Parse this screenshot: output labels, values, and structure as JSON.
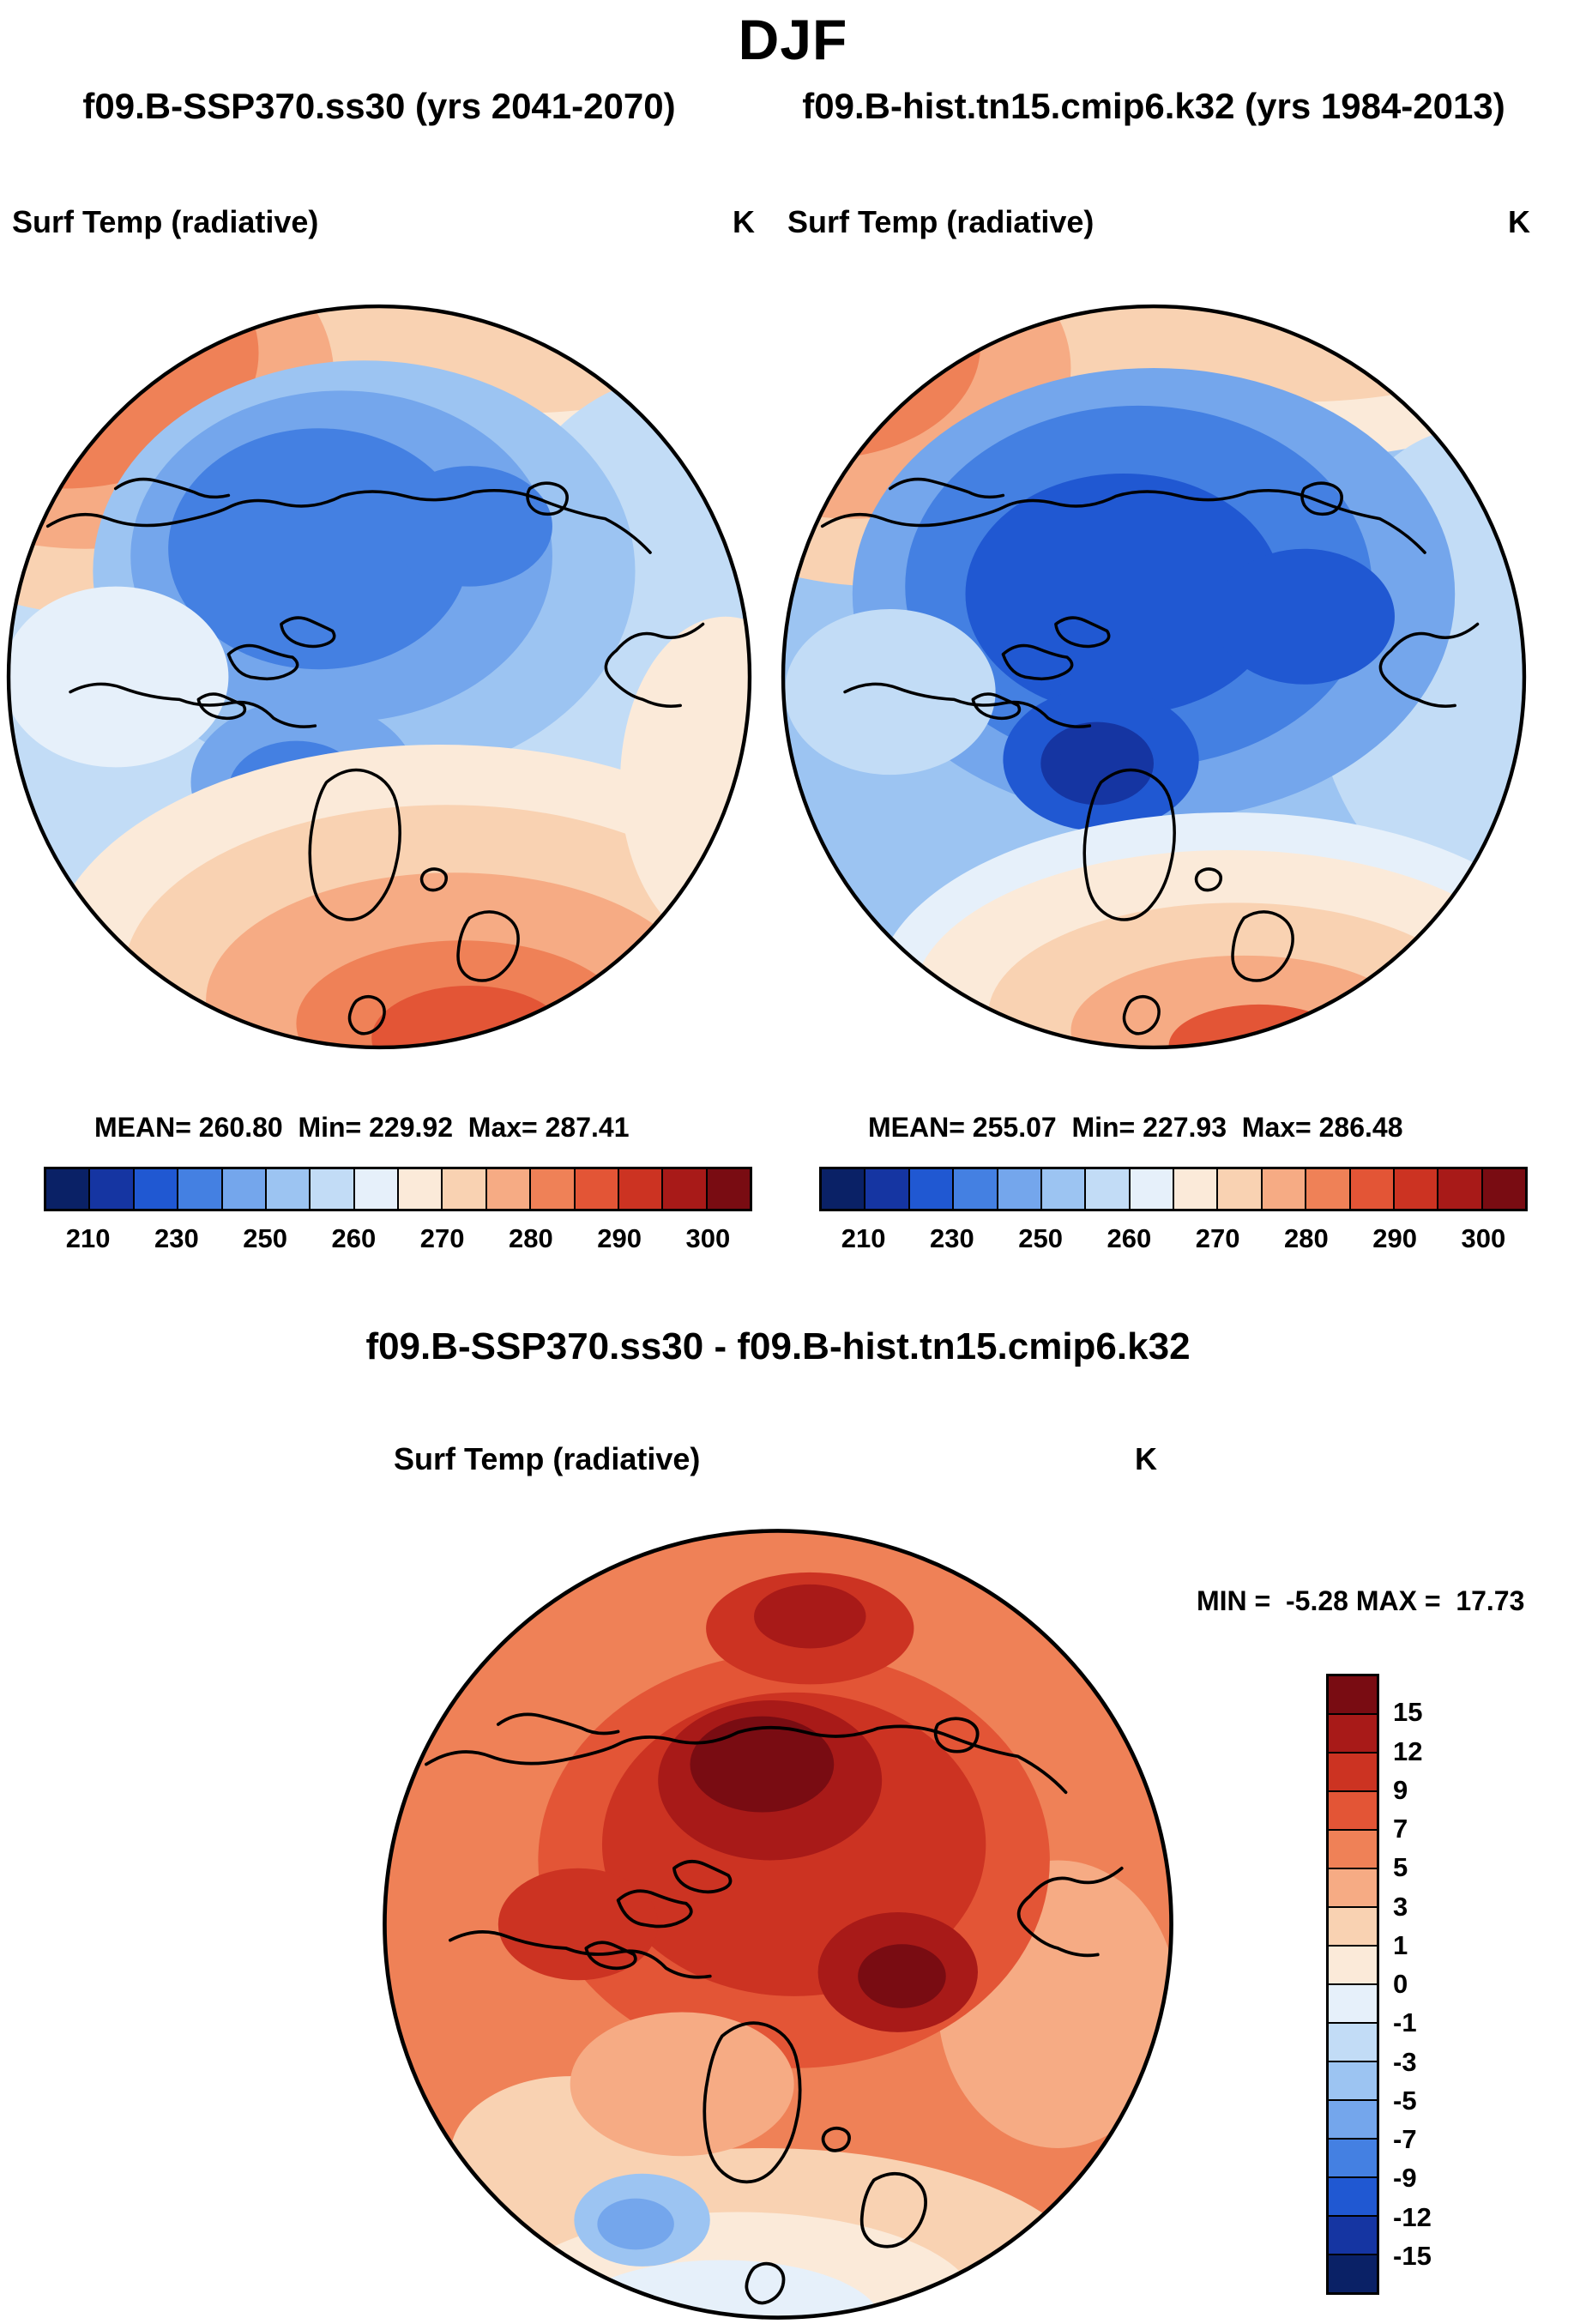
{
  "header": {
    "season": "DJF"
  },
  "panels": [
    {
      "case_title": "f09.B-SSP370.ss30 (yrs 2041-2070)",
      "variable_label": "Surf Temp (radiative)",
      "units": "K",
      "stats_line": "MEAN= 260.80  Min= 229.92  Max= 287.41"
    },
    {
      "case_title": "f09.B-hist.tn15.cmip6.k32 (yrs 1984-2013)",
      "variable_label": "Surf Temp (radiative)",
      "units": "K",
      "stats_line": "MEAN= 255.07  Min= 227.93  Max= 286.48"
    }
  ],
  "diff": {
    "title": "f09.B-SSP370.ss30 - f09.B-hist.tn15.cmip6.k32",
    "variable_label": "Surf Temp (radiative)",
    "units": "K",
    "minmax_line": "MIN =  -5.28 MAX =  17.73"
  },
  "colorbars": {
    "kelvin": {
      "tick_labels": [
        "210",
        "230",
        "250",
        "260",
        "270",
        "280",
        "290",
        "300"
      ],
      "colors": [
        "#0a2166",
        "#1535a2",
        "#2058d2",
        "#4480e2",
        "#74a6ec",
        "#9cc4f2",
        "#c2dcf6",
        "#e6f0fa",
        "#fbead9",
        "#f9d2b2",
        "#f6ab84",
        "#ef8157",
        "#e35536",
        "#cc3322",
        "#a81a18",
        "#790c12"
      ]
    },
    "difference": {
      "tick_labels": [
        "15",
        "12",
        "9",
        "7",
        "5",
        "3",
        "1",
        "0",
        "-1",
        "-3",
        "-5",
        "-7",
        "-9",
        "-12",
        "-15"
      ],
      "colors": [
        "#790c12",
        "#a81a18",
        "#cc3322",
        "#e35536",
        "#ef8157",
        "#f6ab84",
        "#f9d2b2",
        "#fbead9",
        "#e6f0fa",
        "#c2dcf6",
        "#9cc4f2",
        "#74a6ec",
        "#4480e2",
        "#2058d2",
        "#1535a2",
        "#0a2166"
      ]
    }
  },
  "chart_data": {
    "type": "heatmap",
    "title": "DJF",
    "variable": "Surf Temp (radiative)",
    "units": "K",
    "projection": "north polar stereographic",
    "panels": [
      {
        "name": "f09.B-SSP370.ss30",
        "years": "2041-2070",
        "mean": 260.8,
        "min": 229.92,
        "max": 287.41,
        "colorbar_tick_values": [
          210,
          230,
          250,
          260,
          270,
          280,
          290,
          300
        ],
        "legend_position": "below panel, horizontal"
      },
      {
        "name": "f09.B-hist.tn15.cmip6.k32",
        "years": "1984-2013",
        "mean": 255.07,
        "min": 227.93,
        "max": 286.48,
        "colorbar_tick_values": [
          210,
          230,
          250,
          260,
          270,
          280,
          290,
          300
        ],
        "legend_position": "below panel, horizontal"
      },
      {
        "name": "f09.B-SSP370.ss30 - f09.B-hist.tn15.cmip6.k32",
        "kind": "difference",
        "min": -5.28,
        "max": 17.73,
        "colorbar_tick_values": [
          15,
          12,
          9,
          7,
          5,
          3,
          1,
          0,
          -1,
          -3,
          -5,
          -7,
          -9,
          -12,
          -15
        ],
        "legend_position": "right of panel, vertical"
      }
    ]
  }
}
